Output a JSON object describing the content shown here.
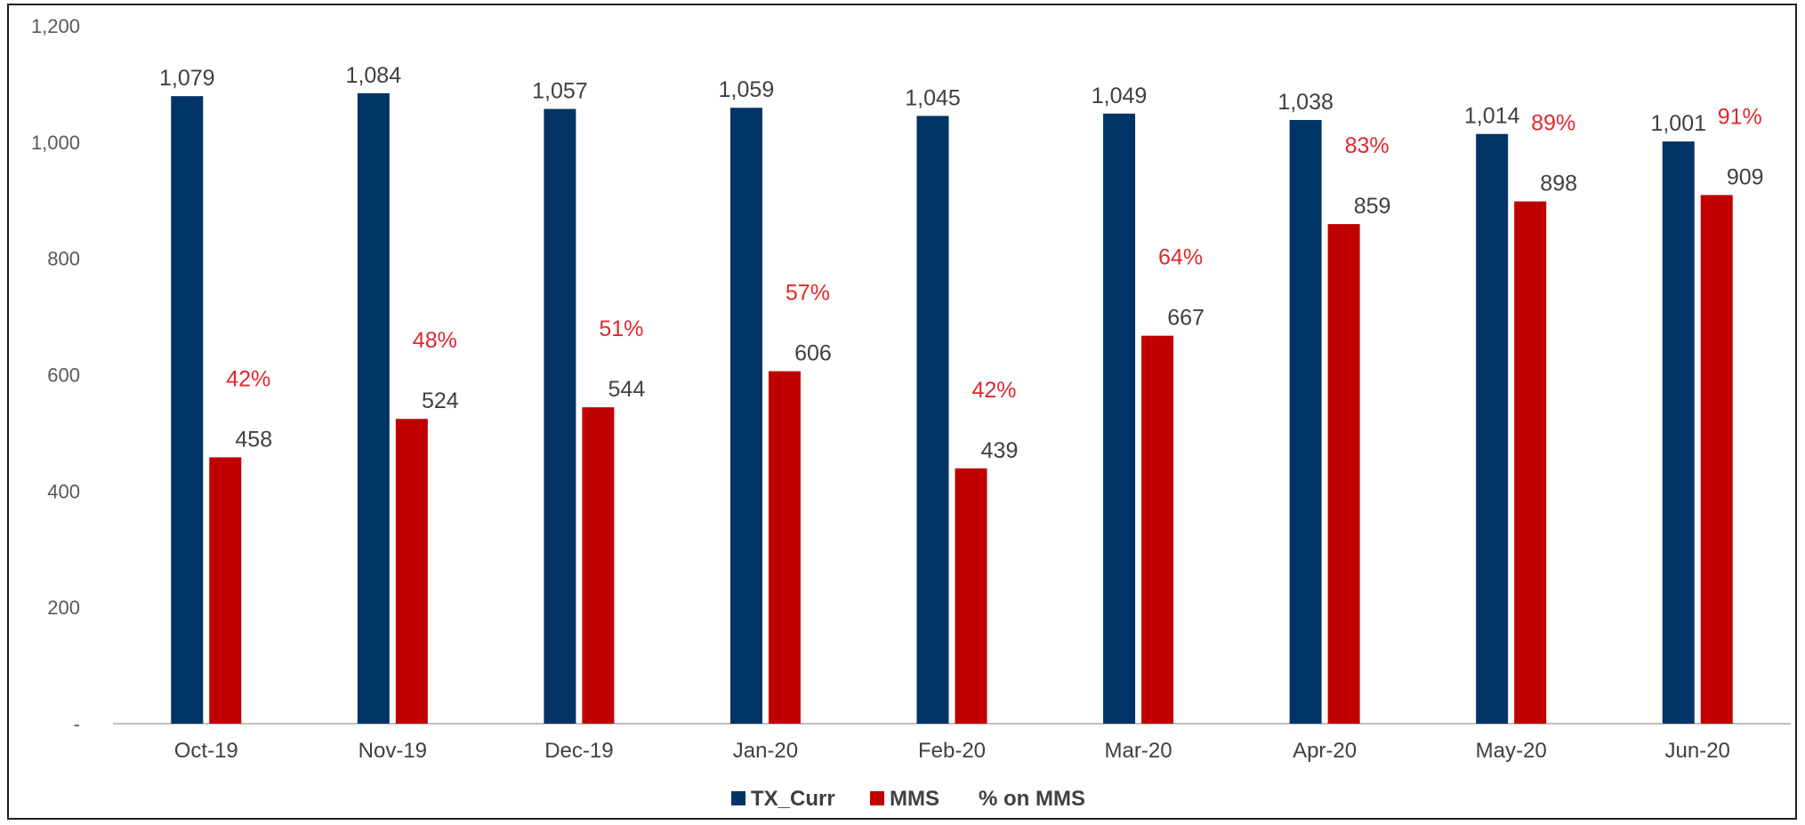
{
  "colors": {
    "tx_curr": "#003366",
    "mms": "#C00000",
    "pct": "#E0282E",
    "axis": "#BFBFBF"
  },
  "chart_data": {
    "type": "bar",
    "categories": [
      "Oct-19",
      "Nov-19",
      "Dec-19",
      "Jan-20",
      "Feb-20",
      "Mar-20",
      "Apr-20",
      "May-20",
      "Jun-20"
    ],
    "series": [
      {
        "name": "TX_Curr",
        "values": [
          1079,
          1084,
          1057,
          1059,
          1045,
          1049,
          1038,
          1014,
          1001
        ],
        "labels": [
          "1,079",
          "1,084",
          "1,057",
          "1,059",
          "1,045",
          "1,049",
          "1,038",
          "1,014",
          "1,001"
        ]
      },
      {
        "name": "MMS",
        "values": [
          458,
          524,
          544,
          606,
          439,
          667,
          859,
          898,
          909
        ],
        "labels": [
          "458",
          "524",
          "544",
          "606",
          "439",
          "667",
          "859",
          "898",
          "909"
        ]
      },
      {
        "name": "% on MMS",
        "values": [
          42,
          48,
          51,
          57,
          42,
          64,
          83,
          89,
          91
        ],
        "labels": [
          "42%",
          "48%",
          "51%",
          "57%",
          "42%",
          "64%",
          "83%",
          "89%",
          "91%"
        ]
      }
    ],
    "ylim": [
      0,
      1200
    ],
    "yticks": [
      0,
      200,
      400,
      600,
      800,
      1000,
      1200
    ],
    "ytick_labels": [
      "-",
      "200",
      "400",
      "600",
      "800",
      "1,000",
      "1,200"
    ],
    "legend_position": "bottom",
    "grid": false
  }
}
